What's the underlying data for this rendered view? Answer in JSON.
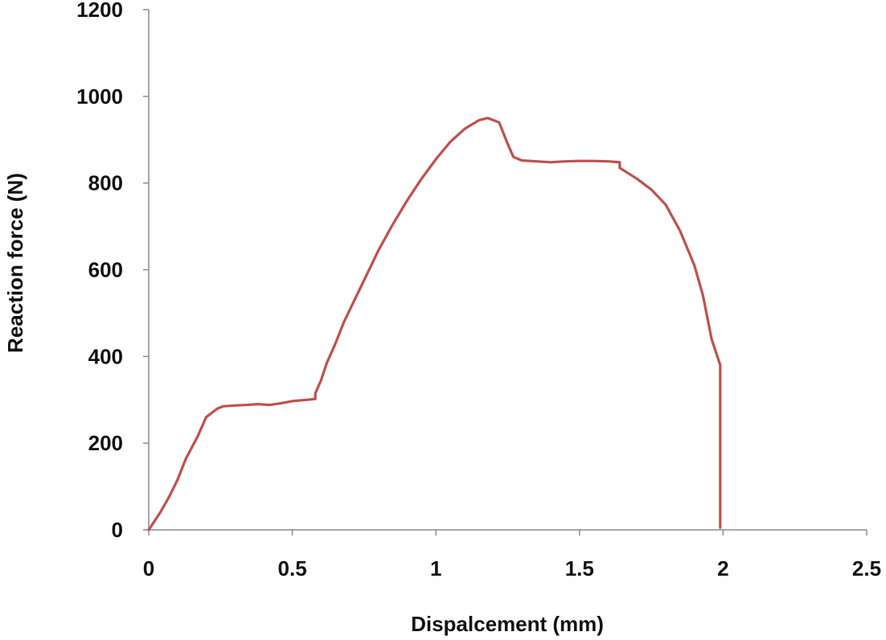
{
  "chart_data": {
    "type": "line",
    "title": "",
    "xlabel": "Dispalcement (mm)",
    "ylabel": "Reaction force (N)",
    "xlim": [
      0,
      2.5
    ],
    "ylim": [
      0,
      1200
    ],
    "x_ticks": [
      "0",
      "0.5",
      "1",
      "1.5",
      "2",
      "2.5"
    ],
    "y_ticks": [
      "0",
      "200",
      "400",
      "600",
      "800",
      "1000",
      "1200"
    ],
    "grid": false,
    "legend": "none",
    "series": [
      {
        "color": "#c0504d",
        "x": [
          0,
          0.02,
          0.04,
          0.07,
          0.1,
          0.13,
          0.17,
          0.2,
          0.24,
          0.26,
          0.3,
          0.34,
          0.38,
          0.42,
          0.46,
          0.5,
          0.55,
          0.58,
          0.58,
          0.6,
          0.62,
          0.65,
          0.68,
          0.72,
          0.76,
          0.8,
          0.85,
          0.9,
          0.95,
          1.0,
          1.05,
          1.1,
          1.15,
          1.18,
          1.22,
          1.25,
          1.27,
          1.3,
          1.35,
          1.4,
          1.45,
          1.5,
          1.55,
          1.6,
          1.64,
          1.64,
          1.7,
          1.75,
          1.8,
          1.85,
          1.9,
          1.93,
          1.96,
          1.99,
          1.99
        ],
        "y": [
          0,
          20,
          40,
          75,
          115,
          165,
          215,
          260,
          280,
          285,
          287,
          288,
          290,
          288,
          292,
          297,
          300,
          302,
          315,
          345,
          385,
          430,
          480,
          535,
          590,
          645,
          705,
          760,
          810,
          855,
          895,
          925,
          945,
          950,
          940,
          890,
          860,
          852,
          850,
          848,
          850,
          851,
          851,
          850,
          848,
          835,
          810,
          785,
          750,
          690,
          610,
          540,
          440,
          380,
          5
        ]
      }
    ]
  }
}
